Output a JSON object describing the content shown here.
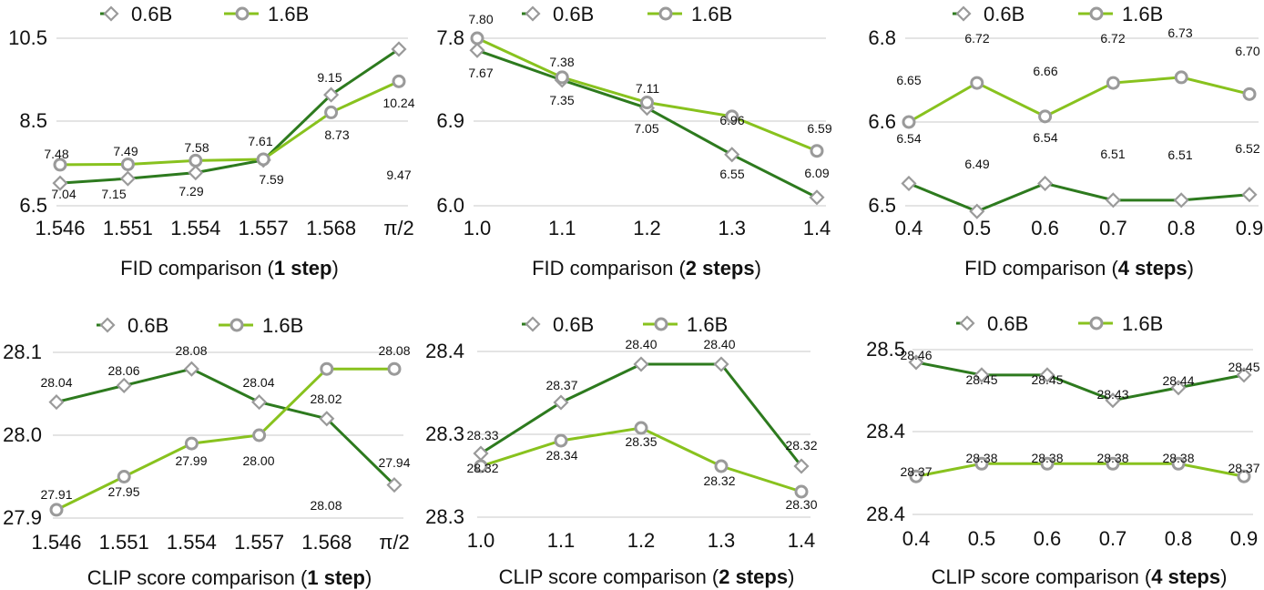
{
  "colors": {
    "series_0_6B": "#2d7a1e",
    "series_1_6B": "#88c21e",
    "marker_stroke": "#9a9a9a",
    "gridline": "#c8c8c8"
  },
  "chart_data": [
    {
      "type": "line",
      "caption_prefix": "FID comparison (",
      "caption_bold": "1 step",
      "caption_suffix": ")",
      "categories": [
        "1.546",
        "1.551",
        "1.554",
        "1.557",
        "1.568",
        "π/2"
      ],
      "yticks": [
        "6.5",
        "8.5",
        "10.5"
      ],
      "ylim": [
        6.5,
        10.5
      ],
      "legend": [
        "0.6B",
        "1.6B"
      ],
      "series": [
        {
          "name": "0.6B",
          "values": [
            7.04,
            7.15,
            7.29,
            7.59,
            9.15,
            10.24
          ],
          "labels": [
            "7.04",
            "7.15",
            "7.29",
            "7.59",
            "9.15",
            "10.24"
          ]
        },
        {
          "name": "1.6B",
          "values": [
            7.48,
            7.49,
            7.58,
            7.61,
            8.73,
            9.47
          ],
          "labels": [
            "7.48",
            "7.49",
            "7.58",
            "7.61",
            "8.73",
            "9.47"
          ]
        }
      ]
    },
    {
      "type": "line",
      "caption_prefix": "FID comparison (",
      "caption_bold": "2 steps",
      "caption_suffix": ")",
      "categories": [
        "1.0",
        "1.1",
        "1.2",
        "1.3",
        "1.4"
      ],
      "yticks": [
        "6.0",
        "6.9",
        "7.8"
      ],
      "ylim": [
        6.0,
        7.8
      ],
      "legend": [
        "0.6B",
        "1.6B"
      ],
      "series": [
        {
          "name": "0.6B",
          "values": [
            7.67,
            7.35,
            7.05,
            6.55,
            6.09
          ],
          "labels": [
            "7.67",
            "7.35",
            "7.05",
            "6.55",
            "6.09"
          ]
        },
        {
          "name": "1.6B",
          "values": [
            7.8,
            7.38,
            7.11,
            6.96,
            6.59
          ],
          "labels": [
            "7.80",
            "7.38",
            "7.11",
            "6.96",
            "6.59"
          ]
        }
      ]
    },
    {
      "type": "line",
      "caption_prefix": "FID comparison (",
      "caption_bold": "4 steps",
      "caption_suffix": ")",
      "categories": [
        "0.4",
        "0.5",
        "0.6",
        "0.7",
        "0.8",
        "0.9"
      ],
      "yticks": [
        "6.5",
        "6.6",
        "6.8"
      ],
      "ylim": [
        6.5,
        6.8
      ],
      "legend": [
        "0.6B",
        "1.6B"
      ],
      "series": [
        {
          "name": "0.6B",
          "values": [
            6.54,
            6.49,
            6.54,
            6.51,
            6.51,
            6.52
          ],
          "labels": [
            "6.54",
            "6.49",
            "6.54",
            "6.51",
            "6.51",
            "6.52"
          ]
        },
        {
          "name": "1.6B",
          "values": [
            6.65,
            6.72,
            6.66,
            6.72,
            6.73,
            6.7
          ],
          "labels": [
            "6.65",
            "6.72",
            "6.66",
            "6.72",
            "6.73",
            "6.70"
          ]
        }
      ]
    },
    {
      "type": "line",
      "caption_prefix": "CLIP score comparison (",
      "caption_bold": "1 step",
      "caption_suffix": ")",
      "categories": [
        "1.546",
        "1.551",
        "1.554",
        "1.557",
        "1.568",
        "π/2"
      ],
      "yticks": [
        "27.9",
        "28.0",
        "28.1"
      ],
      "ylim": [
        27.9,
        28.1
      ],
      "legend": [
        "0.6B",
        "1.6B"
      ],
      "series": [
        {
          "name": "0.6B",
          "values": [
            28.04,
            28.06,
            28.08,
            28.04,
            28.02,
            27.94
          ],
          "labels": [
            "28.04",
            "28.06",
            "28.08",
            "28.04",
            "28.02",
            "27.94"
          ]
        },
        {
          "name": "1.6B",
          "values": [
            27.91,
            27.95,
            27.99,
            28.0,
            28.08,
            28.08
          ],
          "labels": [
            "27.91",
            "27.95",
            "27.99",
            "28.00",
            "28.08",
            "28.08"
          ]
        }
      ]
    },
    {
      "type": "line",
      "caption_prefix": "CLIP score comparison (",
      "caption_bold": "2 steps",
      "caption_suffix": ")",
      "categories": [
        "1.0",
        "1.1",
        "1.2",
        "1.3",
        "1.4"
      ],
      "yticks": [
        "28.3",
        "28.3",
        "28.4"
      ],
      "ylim": [
        28.28,
        28.41
      ],
      "legend": [
        "0.6B",
        "1.6B"
      ],
      "series": [
        {
          "name": "0.6B",
          "values": [
            28.33,
            28.37,
            28.4,
            28.4,
            28.32
          ],
          "labels": [
            "28.33",
            "28.37",
            "28.40",
            "28.40",
            "28.32"
          ]
        },
        {
          "name": "1.6B",
          "values": [
            28.32,
            28.34,
            28.35,
            28.32,
            28.3
          ],
          "labels": [
            "28.32",
            "28.34",
            "28.35",
            "28.32",
            "28.30"
          ]
        }
      ]
    },
    {
      "type": "line",
      "caption_prefix": "CLIP score comparison (",
      "caption_bold": "4 steps",
      "caption_suffix": ")",
      "categories": [
        "0.4",
        "0.5",
        "0.6",
        "0.7",
        "0.8",
        "0.9"
      ],
      "yticks": [
        "28.4",
        "28.4",
        "28.5"
      ],
      "ylim": [
        28.34,
        28.47
      ],
      "legend": [
        "0.6B",
        "1.6B"
      ],
      "series": [
        {
          "name": "0.6B",
          "values": [
            28.46,
            28.45,
            28.45,
            28.43,
            28.44,
            28.45
          ],
          "labels": [
            "28.46",
            "28.45",
            "28.45",
            "28.43",
            "28.44",
            "28.45"
          ]
        },
        {
          "name": "1.6B",
          "values": [
            28.37,
            28.38,
            28.38,
            28.38,
            28.38,
            28.37
          ],
          "labels": [
            "28.37",
            "28.38",
            "28.38",
            "28.38",
            "28.38",
            "28.37"
          ]
        }
      ]
    }
  ]
}
